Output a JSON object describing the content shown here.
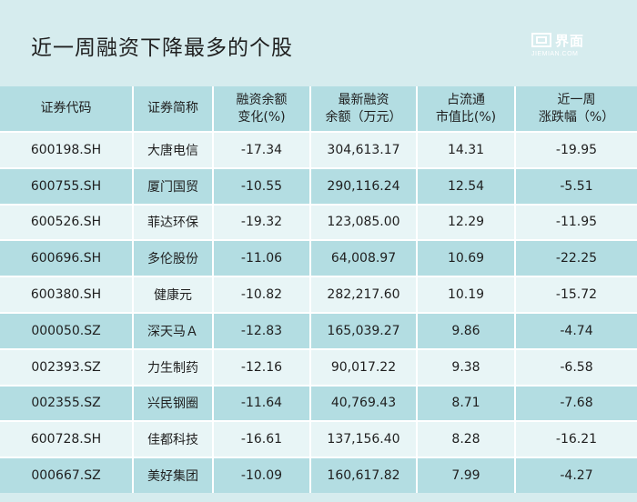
{
  "title": "近一周融资下降最多的个股",
  "logo": {
    "name": "界面",
    "sub": "JIEMIAN.COM"
  },
  "headers": [
    [
      "证券代码"
    ],
    [
      "证券简称"
    ],
    [
      "融资余额",
      "变化(%)"
    ],
    [
      "最新融资",
      "余额（万元）"
    ],
    [
      "占流通",
      "市值比(%)"
    ],
    [
      "近一周",
      "涨跌幅（%）"
    ]
  ],
  "rows": [
    [
      "600198.SH",
      "大唐电信",
      "-17.34",
      "304,613.17",
      "14.31",
      "-19.95"
    ],
    [
      "600755.SH",
      "厦门国贸",
      "-10.55",
      "290,116.24",
      "12.54",
      "-5.51"
    ],
    [
      "600526.SH",
      "菲达环保",
      "-19.32",
      "123,085.00",
      "12.29",
      "-11.95"
    ],
    [
      "600696.SH",
      "多伦股份",
      "-11.06",
      "64,008.97",
      "10.69",
      "-22.25"
    ],
    [
      "600380.SH",
      "健康元",
      "-10.82",
      "282,217.60",
      "10.19",
      "-15.72"
    ],
    [
      "000050.SZ",
      "深天马Ａ",
      "-12.83",
      "165,039.27",
      "9.86",
      "-4.74"
    ],
    [
      "002393.SZ",
      "力生制药",
      "-12.16",
      "90,017.22",
      "9.38",
      "-6.58"
    ],
    [
      "002355.SZ",
      "兴民钢圈",
      "-11.64",
      "40,769.43",
      "8.71",
      "-7.68"
    ],
    [
      "600728.SH",
      "佳都科技",
      "-16.61",
      "137,156.40",
      "8.28",
      "-16.21"
    ],
    [
      "000667.SZ",
      "美好集团",
      "-10.09",
      "160,617.82",
      "7.99",
      "-4.27"
    ]
  ]
}
